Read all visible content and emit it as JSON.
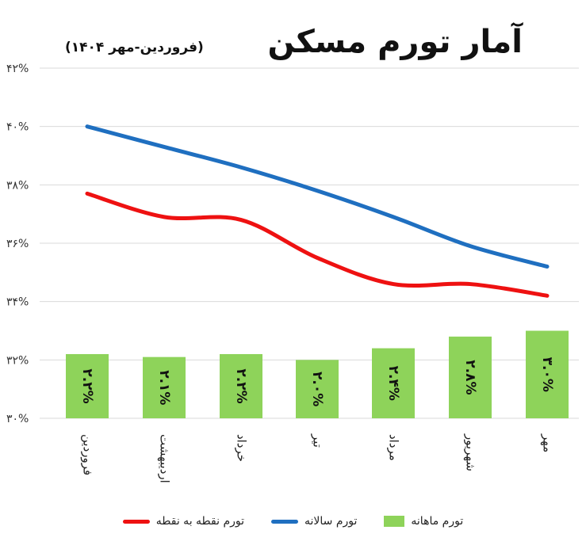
{
  "title": "آمار تورم مسکن",
  "subtitle": "(فروردین-مهر ۱۴۰۴)",
  "colors": {
    "bar": "#8ed35a",
    "annual_line": "#1f6fc0",
    "point_line": "#ee1111",
    "grid": "#d9d9d9",
    "axis_text": "#333333"
  },
  "chart_data": {
    "type": "bar",
    "categories": [
      "فروردین",
      "اردیبهشت",
      "خرداد",
      "تیر",
      "مرداد",
      "شهریور",
      "مهر"
    ],
    "ylim": [
      30,
      42
    ],
    "yticks": [
      30,
      32,
      34,
      36,
      38,
      40,
      42
    ],
    "ytick_labels": [
      "۳۰%",
      "۳۲%",
      "۳۴%",
      "۳۶%",
      "۳۸%",
      "۴۰%",
      "۴۲%"
    ],
    "grid": true,
    "legend_position": "bottom",
    "series": [
      {
        "name": "تورم ماهانه",
        "type": "bar",
        "values": [
          2.2,
          2.1,
          2.2,
          2.0,
          2.4,
          2.8,
          3.0
        ],
        "labels": [
          "۲.۲%",
          "۲.۱%",
          "۲.۲%",
          "۲.۰%",
          "۲.۴%",
          "۲.۸%",
          "۳.۰%"
        ]
      },
      {
        "name": "تورم سالانه",
        "type": "line",
        "values": [
          40.0,
          39.3,
          38.6,
          37.8,
          36.9,
          35.9,
          35.2
        ]
      },
      {
        "name": "تورم نقطه به نقطه",
        "type": "line",
        "values": [
          37.7,
          36.9,
          36.8,
          35.5,
          34.6,
          34.6,
          34.2
        ]
      }
    ]
  }
}
